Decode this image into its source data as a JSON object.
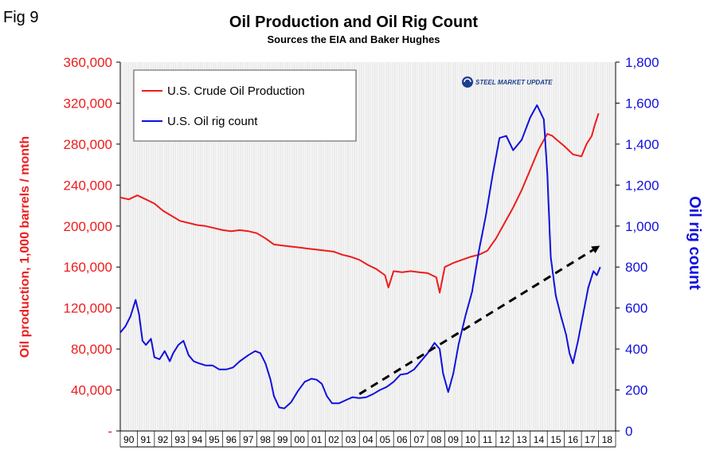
{
  "figure": {
    "label": "Fig 9",
    "logo_text": "STEEL MARKET UPDATE"
  },
  "colors": {
    "production": "#ee1c1c",
    "rigs": "#1010dd",
    "trend": "#000000",
    "grid": "#c8c8c8",
    "logo_blue": "#1b3f8f"
  },
  "chart_data": {
    "type": "line",
    "title": "Oil Production and Oil Rig Count",
    "subtitle": "Sources the EIA and Baker Hughes",
    "ylabel": "Oil production, 1,000 barrels / month",
    "y2label": "Oil rig count",
    "ylim": [
      0,
      360000
    ],
    "y2lim": [
      0,
      1800
    ],
    "y_ticks": [
      "-",
      "40,000",
      "80,000",
      "120,000",
      "160,000",
      "200,000",
      "240,000",
      "280,000",
      "320,000",
      "360,000"
    ],
    "y2_ticks": [
      "0",
      "200",
      "400",
      "600",
      "800",
      "1,000",
      "1,200",
      "1,400",
      "1,600",
      "1,800"
    ],
    "x_ticks": [
      "90",
      "91",
      "92",
      "93",
      "94",
      "95",
      "96",
      "97",
      "98",
      "99",
      "00",
      "01",
      "02",
      "03",
      "04",
      "05",
      "06",
      "07",
      "08",
      "09",
      "10",
      "11",
      "12",
      "13",
      "14",
      "15",
      "16",
      "17",
      "18"
    ],
    "xlim": [
      1990.0,
      2019.0
    ],
    "grid": "vertical",
    "legend": "top-left",
    "series": [
      {
        "name": "U.S. Crude Oil Production",
        "axis": "left",
        "x": [
          1990.0,
          1990.5,
          1991.0,
          1991.5,
          1992.0,
          1992.5,
          1993.0,
          1993.5,
          1994.0,
          1994.5,
          1995.0,
          1995.5,
          1996.0,
          1996.5,
          1997.0,
          1997.5,
          1998.0,
          1998.5,
          1999.0,
          1999.5,
          2000.0,
          2000.5,
          2001.0,
          2001.5,
          2002.0,
          2002.5,
          2003.0,
          2003.5,
          2004.0,
          2004.5,
          2005.0,
          2005.5,
          2005.7,
          2006.0,
          2006.5,
          2007.0,
          2007.5,
          2008.0,
          2008.5,
          2008.7,
          2009.0,
          2009.5,
          2010.0,
          2010.5,
          2011.0,
          2011.5,
          2012.0,
          2012.5,
          2013.0,
          2013.5,
          2014.0,
          2014.5,
          2015.0,
          2015.3,
          2015.5,
          2016.0,
          2016.5,
          2017.0,
          2017.3,
          2017.6,
          2017.8,
          2018.0
        ],
        "values": [
          228000,
          226000,
          230000,
          226000,
          222000,
          215000,
          210000,
          205000,
          203000,
          201000,
          200000,
          198000,
          196000,
          195000,
          196000,
          195000,
          193000,
          188000,
          182000,
          181000,
          180000,
          179000,
          178000,
          177000,
          176000,
          175000,
          172000,
          170000,
          167000,
          162000,
          158000,
          152000,
          140000,
          156000,
          155000,
          156000,
          155000,
          154000,
          150000,
          135000,
          160000,
          164000,
          167000,
          170000,
          172000,
          176000,
          188000,
          203000,
          218000,
          235000,
          255000,
          275000,
          290000,
          288000,
          285000,
          278000,
          270000,
          268000,
          280000,
          288000,
          300000,
          310000
        ]
      },
      {
        "name": "U.S. Oil rig count",
        "axis": "right",
        "x": [
          1990.0,
          1990.3,
          1990.6,
          1990.9,
          1991.1,
          1991.3,
          1991.5,
          1991.8,
          1992.0,
          1992.3,
          1992.6,
          1992.9,
          1993.1,
          1993.4,
          1993.7,
          1994.0,
          1994.3,
          1994.6,
          1995.0,
          1995.4,
          1995.8,
          1996.2,
          1996.6,
          1997.0,
          1997.5,
          1997.9,
          1998.2,
          1998.5,
          1998.8,
          1999.0,
          1999.3,
          1999.6,
          2000.0,
          2000.4,
          2000.8,
          2001.2,
          2001.5,
          2001.8,
          2002.1,
          2002.4,
          2002.8,
          2003.2,
          2003.6,
          2004.0,
          2004.4,
          2004.8,
          2005.2,
          2005.6,
          2006.0,
          2006.4,
          2006.8,
          2007.2,
          2007.6,
          2008.0,
          2008.4,
          2008.7,
          2008.9,
          2009.2,
          2009.5,
          2009.8,
          2010.2,
          2010.6,
          2011.0,
          2011.4,
          2011.8,
          2012.2,
          2012.6,
          2013.0,
          2013.5,
          2014.0,
          2014.4,
          2014.8,
          2015.0,
          2015.2,
          2015.5,
          2015.8,
          2016.1,
          2016.3,
          2016.5,
          2016.8,
          2017.1,
          2017.4,
          2017.7,
          2017.9,
          2018.1
        ],
        "values": [
          480,
          510,
          560,
          640,
          570,
          440,
          420,
          450,
          360,
          350,
          390,
          340,
          380,
          420,
          440,
          370,
          340,
          330,
          320,
          320,
          300,
          300,
          310,
          340,
          370,
          390,
          380,
          330,
          250,
          170,
          115,
          110,
          140,
          195,
          240,
          255,
          250,
          230,
          170,
          135,
          135,
          150,
          165,
          160,
          165,
          180,
          200,
          215,
          240,
          275,
          280,
          300,
          340,
          380,
          430,
          400,
          280,
          190,
          280,
          420,
          560,
          680,
          880,
          1050,
          1250,
          1430,
          1440,
          1370,
          1420,
          1530,
          1590,
          1520,
          1260,
          850,
          660,
          560,
          470,
          380,
          330,
          440,
          570,
          700,
          780,
          760,
          800
        ]
      }
    ],
    "trend_arrow": {
      "style": "dashed",
      "x": [
        2004.0,
        2018.0
      ],
      "y2": [
        180,
        900
      ]
    }
  }
}
